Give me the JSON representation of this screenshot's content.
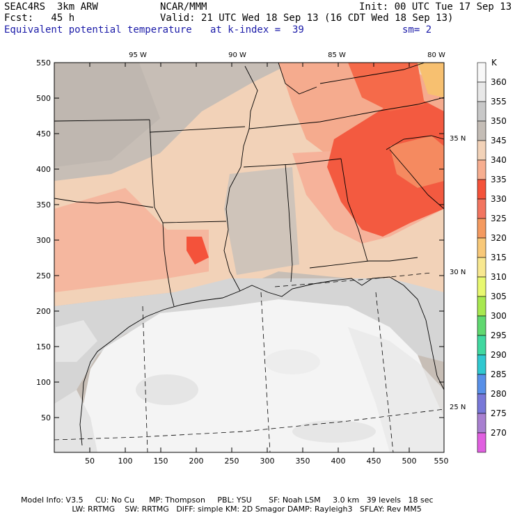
{
  "header": {
    "model": "SEAC4RS  3km ARW",
    "org": "NCAR/MMM",
    "init": "Init: 00 UTC Tue 17 Sep 13",
    "fcst": "Fcst:   45 h",
    "valid": "Valid: 21 UTC Wed 18 Sep 13 (16 CDT Wed 18 Sep 13)",
    "field": "Equivalent potential temperature",
    "kindex": "at k-index =  39",
    "smooth": "sm= 2"
  },
  "map": {
    "x_ticks": [
      "50",
      "100",
      "150",
      "200",
      "250",
      "300",
      "350",
      "400",
      "450",
      "500",
      "550"
    ],
    "y_ticks": [
      "550",
      "500",
      "450",
      "400",
      "350",
      "300",
      "250",
      "200",
      "150",
      "100",
      "50"
    ],
    "lon_labels": [
      "95 W",
      "90 W",
      "85 W",
      "80 W"
    ],
    "lat_labels": [
      "35 N",
      "30 N",
      "25 N"
    ]
  },
  "legend": {
    "unit": "K",
    "levels": [
      "360",
      "355",
      "350",
      "345",
      "340",
      "335",
      "330",
      "325",
      "320",
      "315",
      "310",
      "305",
      "300",
      "295",
      "290",
      "285",
      "280",
      "275",
      "270"
    ],
    "colors": [
      "#f8f8f8",
      "#e8e8e8",
      "#c8c8c8",
      "#c4bdb6",
      "#f2d2b8",
      "#f7ae90",
      "#f4523a",
      "#f27560",
      "#f49a60",
      "#f8c878",
      "#f8e890",
      "#e8f870",
      "#a8e850",
      "#60d870",
      "#40d8a0",
      "#30c8d0",
      "#5890e8",
      "#7878d8",
      "#a880d0",
      "#e060e0"
    ]
  },
  "footer": {
    "line1": "Model Info: V3.5     CU: No Cu      MP: Thompson     PBL: YSU       SF: Noah LSM     3.0 km   39 levels   18 sec",
    "line2": "                     LW: RRTMG    SW: RRTMG   DIFF: simple KM: 2D Smagor DAMP: Rayleigh3   SFLAY: Rev MM5"
  }
}
